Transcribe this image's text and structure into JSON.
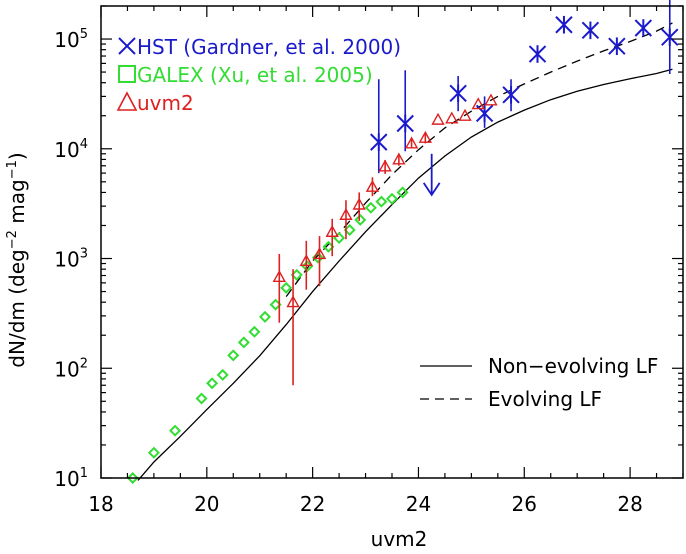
{
  "chart_data": {
    "type": "scatter",
    "xlabel": "uvm2",
    "ylabel": "dN/dm (deg",
    "ylabel_sup1": "−2",
    "ylabel_mid": " mag",
    "ylabel_sup2": "−1",
    "ylabel_end": ")",
    "xlim": [
      18,
      29
    ],
    "ylim": [
      10,
      200000
    ],
    "yscale": "log",
    "x_ticks": [
      "18",
      "20",
      "22",
      "24",
      "26",
      "28"
    ],
    "y_ticks": [
      {
        "base": "10",
        "exp": "1"
      },
      {
        "base": "10",
        "exp": "2"
      },
      {
        "base": "10",
        "exp": "3"
      },
      {
        "base": "10",
        "exp": "4"
      },
      {
        "base": "10",
        "exp": "5"
      }
    ],
    "legend_top_left": [
      {
        "marker": "cross",
        "color": "#1a1acc",
        "text": "HST (Gardner, et al. 2000)"
      },
      {
        "marker": "square",
        "color": "#33dd33",
        "text": "GALEX (Xu, et al. 2005)"
      },
      {
        "marker": "triangle",
        "color": "#dd2020",
        "text": "uvm2"
      }
    ],
    "legend_lines": [
      {
        "style": "solid",
        "text": "Non−evolving LF"
      },
      {
        "style": "dashed",
        "text": "Evolving LF"
      }
    ],
    "series": [
      {
        "name": "HST (Gardner, et al. 2000)",
        "marker": "asterisk",
        "color": "#1a1acc",
        "x": [
          23.25,
          23.75,
          24.75,
          25.25,
          25.75,
          26.25,
          26.75,
          27.25,
          27.75,
          28.25,
          28.75
        ],
        "y": [
          11500,
          17000,
          32000,
          21000,
          31000,
          73000,
          135000,
          120000,
          86000,
          126000,
          104000
        ],
        "y_low": [
          6000,
          9500,
          22000,
          15500,
          22000,
          null,
          null,
          null,
          null,
          null,
          48000
        ],
        "y_high": [
          43000,
          52000,
          46000,
          30000,
          43000,
          null,
          null,
          null,
          null,
          null,
          280000
        ],
        "upper_limit": {
          "x": 24.25,
          "y": 9000,
          "y_end": 3800
        }
      },
      {
        "name": "GALEX (Xu, et al. 2005)",
        "marker": "diamond",
        "color": "#33dd33",
        "x": [
          18.6,
          19.0,
          19.4,
          19.9,
          20.1,
          20.3,
          20.5,
          20.7,
          20.9,
          21.1,
          21.3,
          21.5,
          21.7,
          21.9,
          22.1,
          22.3,
          22.5,
          22.7,
          22.9,
          23.1,
          23.3,
          23.5,
          23.7
        ],
        "y": [
          10,
          17,
          27,
          53,
          73,
          87,
          131,
          172,
          215,
          294,
          380,
          540,
          710,
          850,
          1020,
          1280,
          1540,
          1820,
          2250,
          2900,
          3300,
          3500,
          4000
        ]
      },
      {
        "name": "uvm2",
        "marker": "triangle",
        "color": "#dd2020",
        "x": [
          21.37,
          21.63,
          21.88,
          22.13,
          22.37,
          22.63,
          22.88,
          23.13,
          23.37,
          23.63,
          23.87,
          24.13,
          24.37,
          24.63,
          24.88,
          25.13,
          25.37
        ],
        "y": [
          680,
          400,
          950,
          1100,
          1750,
          2500,
          3100,
          4500,
          6900,
          8000,
          11200,
          12600,
          18400,
          18900,
          20000,
          25500,
          27600
        ],
        "y_low": [
          260,
          70,
          520,
          560,
          1050,
          1500,
          2200,
          3700,
          5900,
          7000,
          10200,
          11200,
          null,
          null,
          null,
          null,
          null
        ],
        "y_high": [
          1100,
          800,
          1450,
          1600,
          2300,
          3400,
          4000,
          5500,
          7900,
          9000,
          12300,
          13800,
          null,
          null,
          null,
          null,
          null
        ]
      }
    ],
    "curves": [
      {
        "name": "Non-evolving LF",
        "style": "solid",
        "x": [
          18.7,
          19.0,
          19.5,
          20.0,
          20.5,
          21.0,
          21.5,
          22.0,
          22.5,
          23.0,
          23.5,
          24.0,
          24.5,
          25.0,
          25.5,
          26.0,
          26.5,
          27.0,
          27.5,
          28.0,
          28.5,
          28.8
        ],
        "y": [
          9.5,
          14,
          24,
          42,
          73,
          130,
          250,
          500,
          950,
          1750,
          3100,
          5400,
          8600,
          12800,
          17500,
          22500,
          28000,
          33500,
          38500,
          43500,
          48500,
          53000
        ]
      },
      {
        "name": "Evolving LF",
        "style": "dashed",
        "x": [
          21.5,
          22.0,
          22.5,
          23.0,
          23.5,
          24.0,
          24.5,
          25.0,
          25.5,
          26.0,
          26.5,
          27.0,
          27.5,
          28.0,
          28.5,
          28.8
        ],
        "y": [
          450,
          950,
          1700,
          3200,
          5800,
          9800,
          15500,
          22000,
          30000,
          39000,
          50000,
          63000,
          78000,
          95000,
          118000,
          140000
        ]
      }
    ]
  }
}
